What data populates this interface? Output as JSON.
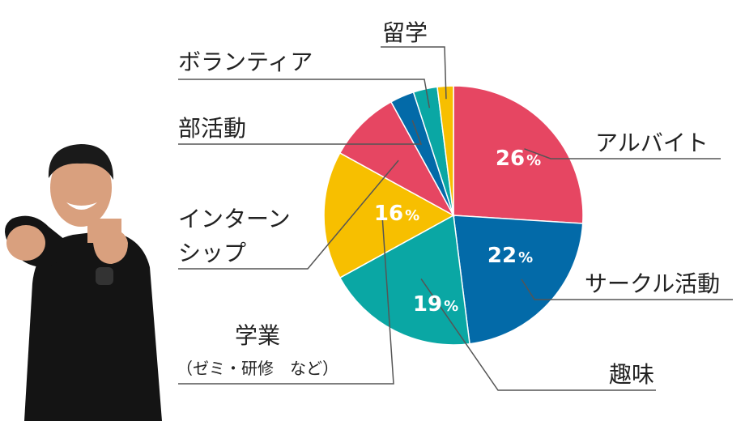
{
  "chart_data": {
    "type": "pie",
    "slices": [
      {
        "label": "アルバイト",
        "value": 26,
        "value_label": "26",
        "unit": "%",
        "color": "#e64662"
      },
      {
        "label": "サークル活動",
        "value": 22,
        "value_label": "22",
        "unit": "%",
        "color": "#036aa8"
      },
      {
        "label": "趣味",
        "value": 19,
        "value_label": "19",
        "unit": "%",
        "color": "#0aa7a4"
      },
      {
        "label": "学業",
        "sublabel": "（ゼミ・研修　など）",
        "value": 16,
        "value_label": "16",
        "unit": "%",
        "color": "#f7bf00"
      },
      {
        "label": "インターン",
        "label_line2": "シップ",
        "value": 9,
        "color": "#e64662"
      },
      {
        "label": "部活動",
        "value": 3,
        "color": "#036aa8"
      },
      {
        "label": "ボランティア",
        "value": 3,
        "color": "#0aa7a4"
      },
      {
        "label": "留学",
        "value": 2,
        "color": "#f7bf00"
      }
    ]
  },
  "photo": {
    "icon": "person-fighting-pose-icon",
    "shirt_color": "#141414",
    "skin_color": "#d9a07e"
  }
}
